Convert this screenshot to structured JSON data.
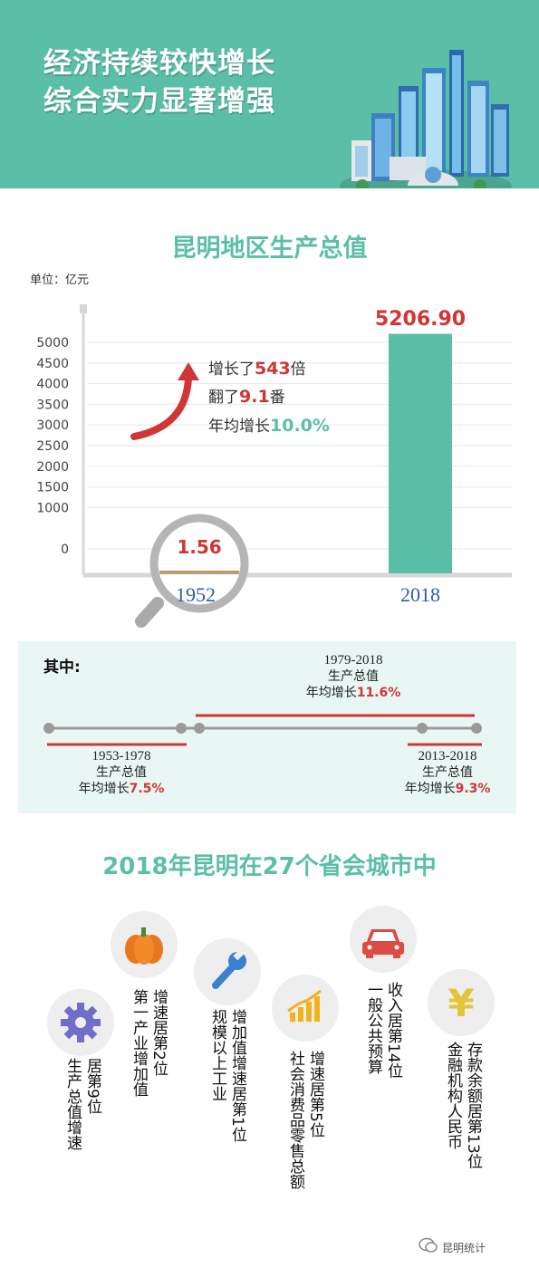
{
  "banner": {
    "line1": "经济持续较快增长",
    "line2": "综合实力显著增强"
  },
  "section1": {
    "title": "昆明地区生产总值",
    "unit": "单位：亿元"
  },
  "chart_data": {
    "type": "bar",
    "categories": [
      "1952",
      "2018"
    ],
    "values": [
      1.56,
      5206.9
    ],
    "value_labels": [
      "1.56",
      "5206.90"
    ],
    "ylim": [
      0,
      5000
    ],
    "yticks": [
      "5000",
      "4500",
      "4000",
      "3500",
      "3000",
      "2500",
      "2000",
      "1500",
      "1000",
      "0"
    ],
    "grid": true,
    "bar_color": "#5bbfa8",
    "annotation": [
      {
        "pre": "增长了",
        "num": "543",
        "post": "倍"
      },
      {
        "pre": "翻了",
        "num": "9.1",
        "post": "番"
      },
      {
        "pre": "年均增长",
        "num": "10.0%",
        "post": ""
      }
    ]
  },
  "panel": {
    "title": "其中:",
    "top_period": {
      "years": "1979-2018",
      "label": "生产总值",
      "growth_label": "年均增长",
      "growth": "11.6%"
    },
    "left_period": {
      "years": "1953-1978",
      "label": "生产总值",
      "growth_label": "年均增长",
      "growth": "7.5%"
    },
    "right_period": {
      "years": "2013-2018",
      "label": "生产总值",
      "growth_label": "年均增长",
      "growth": "9.3%"
    }
  },
  "section2": {
    "title": "2018年昆明在27个省会城市中",
    "items": [
      {
        "icon": "gear-icon",
        "col1": "居第9位",
        "col2": "生产总值增速"
      },
      {
        "icon": "pumpkin-icon",
        "col1": "增速居第2位",
        "col2": "第一产业增加值"
      },
      {
        "icon": "wrench-icon",
        "col1": "增加值增速居第1位",
        "col2": "规模以上工业"
      },
      {
        "icon": "bar-chart-icon",
        "col1": "增速居第5位",
        "col2": "社会消费品零售总额"
      },
      {
        "icon": "car-icon",
        "col1": "收入居第14位",
        "col2": "一般公共预算"
      },
      {
        "icon": "yen-icon",
        "col1": "存款余额居第13位",
        "col2": "金融机构人民币"
      }
    ]
  },
  "watermark": "昆明统计",
  "colors": {
    "teal": "#5bbfa8",
    "red": "#cf3634",
    "grey": "#9a9a9a",
    "panel": "#e9f7f4"
  }
}
